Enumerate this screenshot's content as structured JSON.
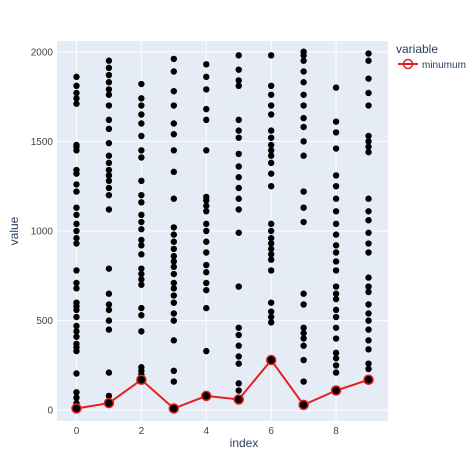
{
  "chart_data": {
    "type": "scatter",
    "title": "",
    "xlabel": "index",
    "ylabel": "value",
    "xlim": [
      -0.6,
      9.6
    ],
    "ylim": [
      -60,
      2060
    ],
    "x_ticks": [
      0,
      2,
      4,
      6,
      8
    ],
    "y_ticks": [
      0,
      500,
      1000,
      1500,
      2000
    ],
    "grid": true,
    "legend_placement": "top-right",
    "legend_title": "variable",
    "plot_background": "#e5ecf6",
    "points_color": "#000000",
    "line_color": "#e32020",
    "series": [
      {
        "name": "",
        "kind": "markers",
        "columns": [
          {
            "x": 0,
            "values": [
              10,
              40,
              70,
              100,
              205,
              330,
              350,
              370,
              410,
              440,
              470,
              520,
              560,
              580,
              600,
              680,
              710,
              780,
              930,
              960,
              1000,
              1040,
              1090,
              1130,
              1220,
              1260,
              1320,
              1340,
              1450,
              1470,
              1480,
              1710,
              1740,
              1770,
              1810,
              1860
            ]
          },
          {
            "x": 1,
            "values": [
              40,
              80,
              210,
              450,
              500,
              560,
              590,
              650,
              790,
              1120,
              1200,
              1240,
              1280,
              1310,
              1340,
              1380,
              1420,
              1490,
              1570,
              1620,
              1700,
              1760,
              1790,
              1830,
              1870,
              1910,
              1950
            ]
          },
          {
            "x": 2,
            "values": [
              170,
              200,
              220,
              240,
              440,
              530,
              570,
              700,
              730,
              760,
              790,
              870,
              920,
              950,
              1010,
              1050,
              1090,
              1160,
              1200,
              1280,
              1410,
              1450,
              1530,
              1600,
              1650,
              1700,
              1740,
              1820
            ]
          },
          {
            "x": 3,
            "values": [
              10,
              160,
              220,
              390,
              500,
              540,
              600,
              640,
              680,
              710,
              760,
              800,
              830,
              860,
              900,
              940,
              980,
              1020,
              1180,
              1330,
              1450,
              1540,
              1600,
              1700,
              1780,
              1890,
              1960
            ]
          },
          {
            "x": 4,
            "values": [
              80,
              330,
              570,
              670,
              710,
              770,
              810,
              880,
              940,
              1000,
              1040,
              1110,
              1140,
              1170,
              1190,
              1450,
              1620,
              1680,
              1790,
              1860,
              1930
            ]
          },
          {
            "x": 5,
            "values": [
              60,
              110,
              150,
              260,
              300,
              360,
              420,
              460,
              690,
              990,
              1120,
              1180,
              1240,
              1300,
              1360,
              1430,
              1520,
              1560,
              1620,
              1810,
              1840,
              1900,
              1980
            ]
          },
          {
            "x": 6,
            "values": [
              280,
              490,
              520,
              550,
              600,
              780,
              840,
              870,
              900,
              930,
              960,
              1000,
              1040,
              1250,
              1320,
              1380,
              1420,
              1450,
              1480,
              1520,
              1560,
              1650,
              1700,
              1760,
              1810,
              1980
            ]
          },
          {
            "x": 7,
            "values": [
              30,
              160,
              280,
              360,
              400,
              430,
              460,
              590,
              650,
              1050,
              1130,
              1220,
              1420,
              1500,
              1580,
              1630,
              1700,
              1760,
              1830,
              1890,
              1950,
              1980,
              2000
            ]
          },
          {
            "x": 8,
            "values": [
              110,
              210,
              250,
              290,
              320,
              400,
              460,
              520,
              560,
              620,
              650,
              690,
              780,
              830,
              880,
              920,
              980,
              1040,
              1110,
              1180,
              1250,
              1310,
              1460,
              1550,
              1610,
              1800
            ]
          },
          {
            "x": 9,
            "values": [
              170,
              230,
              260,
              340,
              390,
              450,
              500,
              540,
              590,
              660,
              690,
              740,
              880,
              930,
              990,
              1060,
              1110,
              1180,
              1440,
              1470,
              1500,
              1530,
              1700,
              1770,
              1850,
              1950,
              1990
            ]
          }
        ]
      },
      {
        "name": "minumum",
        "kind": "lines+markers",
        "x": [
          0,
          1,
          2,
          3,
          4,
          5,
          6,
          7,
          8,
          9
        ],
        "values": [
          10,
          40,
          170,
          10,
          80,
          60,
          280,
          30,
          110,
          170
        ]
      }
    ]
  }
}
